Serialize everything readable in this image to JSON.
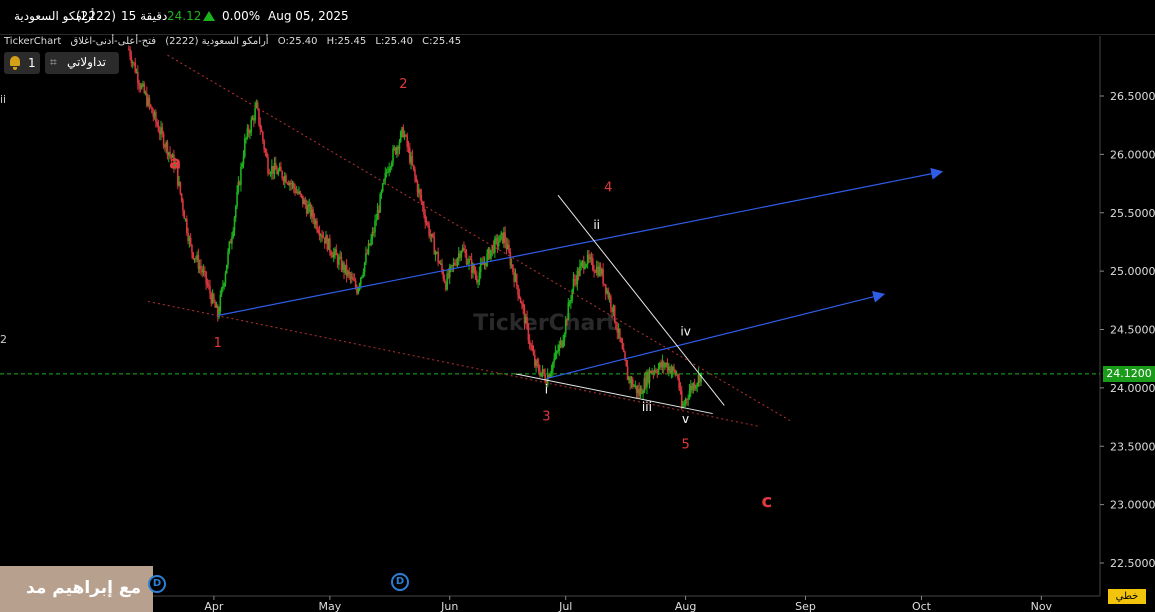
{
  "topbar": {
    "name": "أرامكو السعودية",
    "code": "(2222)",
    "interval": "15 دقيقة",
    "price": "24.12",
    "change": "0.00%",
    "date": "Aug 05, 2025"
  },
  "header2": {
    "source": "TickerChart",
    "symbol": "أرامكو السعودية (2222)",
    "ohlc_label": "فتح-أعلى-أدنى-اغلاق",
    "open": "O:25.40",
    "high": "H:25.45",
    "low": "L:25.40",
    "close": "C:25.45"
  },
  "toolbar": {
    "alerts_count": "1",
    "watchlist_label": "تداولاتي",
    "line_type_label": "خطي"
  },
  "left_marks": [
    "ii",
    "2"
  ],
  "watermark": {
    "logo_text": "TickerChart",
    "overlay_text": "مع إبراهيم مد"
  },
  "badges": [
    "D",
    "D"
  ],
  "colors": {
    "up": "#1db31d",
    "down": "#d9363e",
    "channel": "#2f5de8",
    "trend": "#b83232",
    "wave_label": "#e0393e",
    "sub_label": "#ffffff",
    "grid_price": "#1db31d"
  },
  "chart_data": {
    "type": "candlestick",
    "x_labels": [
      "Apr",
      "May",
      "Jun",
      "Jul",
      "Aug",
      "Sep",
      "Oct",
      "Nov"
    ],
    "y_ticks": [
      "22.5000",
      "23.0000",
      "23.5000",
      "24.0000",
      "24.5000",
      "25.0000",
      "25.5000",
      "26.0000",
      "26.5000"
    ],
    "ylim": [
      22.35,
      26.85
    ],
    "last_price": "24.1200",
    "close_path": [
      [
        "2025-03-10",
        26.9
      ],
      [
        "2025-03-13",
        26.6
      ],
      [
        "2025-03-18",
        26.2
      ],
      [
        "2025-03-22",
        25.9
      ],
      [
        "2025-03-26",
        25.2
      ],
      [
        "2025-03-29",
        25.0
      ],
      [
        "2025-04-02",
        24.62
      ],
      [
        "2025-04-06",
        25.4
      ],
      [
        "2025-04-09",
        26.1
      ],
      [
        "2025-04-12",
        26.4
      ],
      [
        "2025-04-15",
        25.9
      ],
      [
        "2025-04-20",
        25.8
      ],
      [
        "2025-04-26",
        25.5
      ],
      [
        "2025-05-01",
        25.2
      ],
      [
        "2025-05-05",
        25.0
      ],
      [
        "2025-05-08",
        24.85
      ],
      [
        "2025-05-12",
        25.3
      ],
      [
        "2025-05-16",
        25.9
      ],
      [
        "2025-05-20",
        26.2
      ],
      [
        "2025-05-23",
        25.8
      ],
      [
        "2025-05-27",
        25.3
      ],
      [
        "2025-05-31",
        24.9
      ],
      [
        "2025-06-04",
        25.2
      ],
      [
        "2025-06-08",
        24.95
      ],
      [
        "2025-06-12",
        25.2
      ],
      [
        "2025-06-15",
        25.3
      ],
      [
        "2025-06-19",
        24.8
      ],
      [
        "2025-06-23",
        24.2
      ],
      [
        "2025-06-26",
        24.08
      ],
      [
        "2025-06-30",
        24.4
      ],
      [
        "2025-07-03",
        24.9
      ],
      [
        "2025-07-06",
        25.1
      ],
      [
        "2025-07-10",
        25.0
      ],
      [
        "2025-07-13",
        24.7
      ],
      [
        "2025-07-17",
        24.1
      ],
      [
        "2025-07-20",
        23.95
      ],
      [
        "2025-07-23",
        24.15
      ],
      [
        "2025-07-27",
        24.2
      ],
      [
        "2025-07-30",
        24.1
      ],
      [
        "2025-07-31",
        23.82
      ],
      [
        "2025-08-02",
        23.98
      ],
      [
        "2025-08-05",
        24.12
      ]
    ],
    "wave_labels": [
      {
        "text": "1",
        "date": "2025-04-02",
        "price": 24.35,
        "style": "red"
      },
      {
        "text": "2",
        "date": "2025-05-20",
        "price": 26.57,
        "style": "red"
      },
      {
        "text": "3",
        "date": "2025-06-26",
        "price": 23.72,
        "style": "red"
      },
      {
        "text": "4",
        "date": "2025-07-12",
        "price": 25.68,
        "style": "red"
      },
      {
        "text": "5",
        "date": "2025-08-01",
        "price": 23.48,
        "style": "red"
      },
      {
        "text": "a",
        "date": "2025-03-22",
        "price": 25.88,
        "style": "red-big"
      },
      {
        "text": "c",
        "date": "2025-08-22",
        "price": 22.98,
        "style": "red-big"
      },
      {
        "text": "i",
        "date": "2025-06-26",
        "price": 23.95,
        "style": "white"
      },
      {
        "text": "ii",
        "date": "2025-07-09",
        "price": 25.36,
        "style": "white"
      },
      {
        "text": "iii",
        "date": "2025-07-22",
        "price": 23.8,
        "style": "white"
      },
      {
        "text": "iv",
        "date": "2025-08-01",
        "price": 24.45,
        "style": "white"
      },
      {
        "text": "v",
        "date": "2025-08-01",
        "price": 23.7,
        "style": "white"
      }
    ],
    "lines": [
      {
        "kind": "channel",
        "from": [
          "2025-04-02",
          24.62
        ],
        "to": [
          "2025-10-06",
          25.85
        ],
        "arrow": true
      },
      {
        "kind": "channel",
        "from": [
          "2025-06-26",
          24.08
        ],
        "to": [
          "2025-09-21",
          24.8
        ],
        "arrow": true
      },
      {
        "kind": "trend",
        "from": [
          "2025-03-20",
          26.85
        ],
        "to": [
          "2025-08-28",
          23.72
        ]
      },
      {
        "kind": "trend",
        "from": [
          "2025-03-15",
          24.74
        ],
        "to": [
          "2025-08-20",
          23.67
        ]
      },
      {
        "kind": "wedge",
        "from": [
          "2025-06-18",
          24.12
        ],
        "to": [
          "2025-08-08",
          23.78
        ]
      },
      {
        "kind": "wedge",
        "from": [
          "2025-06-29",
          25.65
        ],
        "to": [
          "2025-08-11",
          23.85
        ]
      }
    ],
    "grid": false
  }
}
